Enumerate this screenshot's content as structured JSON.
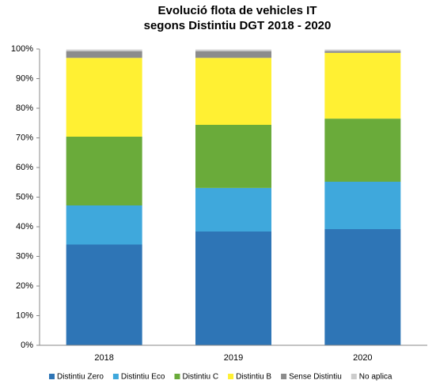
{
  "chart_data": {
    "type": "stacked_bar",
    "title": [
      "Evolució flota de vehicles IT",
      "segons Distintiu DGT 2018 - 2020"
    ],
    "categories": [
      "2018",
      "2019",
      "2020"
    ],
    "series": [
      {
        "name": "Distintiu Zero",
        "color": "#2e75b6",
        "values": [
          34,
          38.4,
          39.2
        ]
      },
      {
        "name": "Distintiu Eco",
        "color": "#3fa8dc",
        "values": [
          13.2,
          14.7,
          16
        ]
      },
      {
        "name": "Distintiu C",
        "color": "#6aab3a",
        "values": [
          23.2,
          21.3,
          21.3
        ]
      },
      {
        "name": "Distintiu B",
        "color": "#fff033",
        "values": [
          26.6,
          22.6,
          22.2
        ]
      },
      {
        "name": "Sense Distintiu",
        "color": "#8c8c8c",
        "values": [
          2.2,
          2.2,
          0.6
        ]
      },
      {
        "name": "No aplica",
        "color": "#cccccc",
        "values": [
          0.6,
          0.6,
          0.5
        ]
      }
    ],
    "ylim": [
      0,
      100
    ],
    "yticks": [
      {
        "value": 0,
        "label": "0%"
      },
      {
        "value": 10,
        "label": "10%"
      },
      {
        "value": 20,
        "label": "20%"
      },
      {
        "value": 30,
        "label": "30%"
      },
      {
        "value": 40,
        "label": "40%"
      },
      {
        "value": 50,
        "label": "50%"
      },
      {
        "value": 60,
        "label": "60%"
      },
      {
        "value": 70,
        "label": "70%"
      },
      {
        "value": 80,
        "label": "80%"
      },
      {
        "value": 90,
        "label": "90%"
      },
      {
        "value": 100,
        "label": "100%"
      }
    ],
    "legend": "bottom"
  }
}
